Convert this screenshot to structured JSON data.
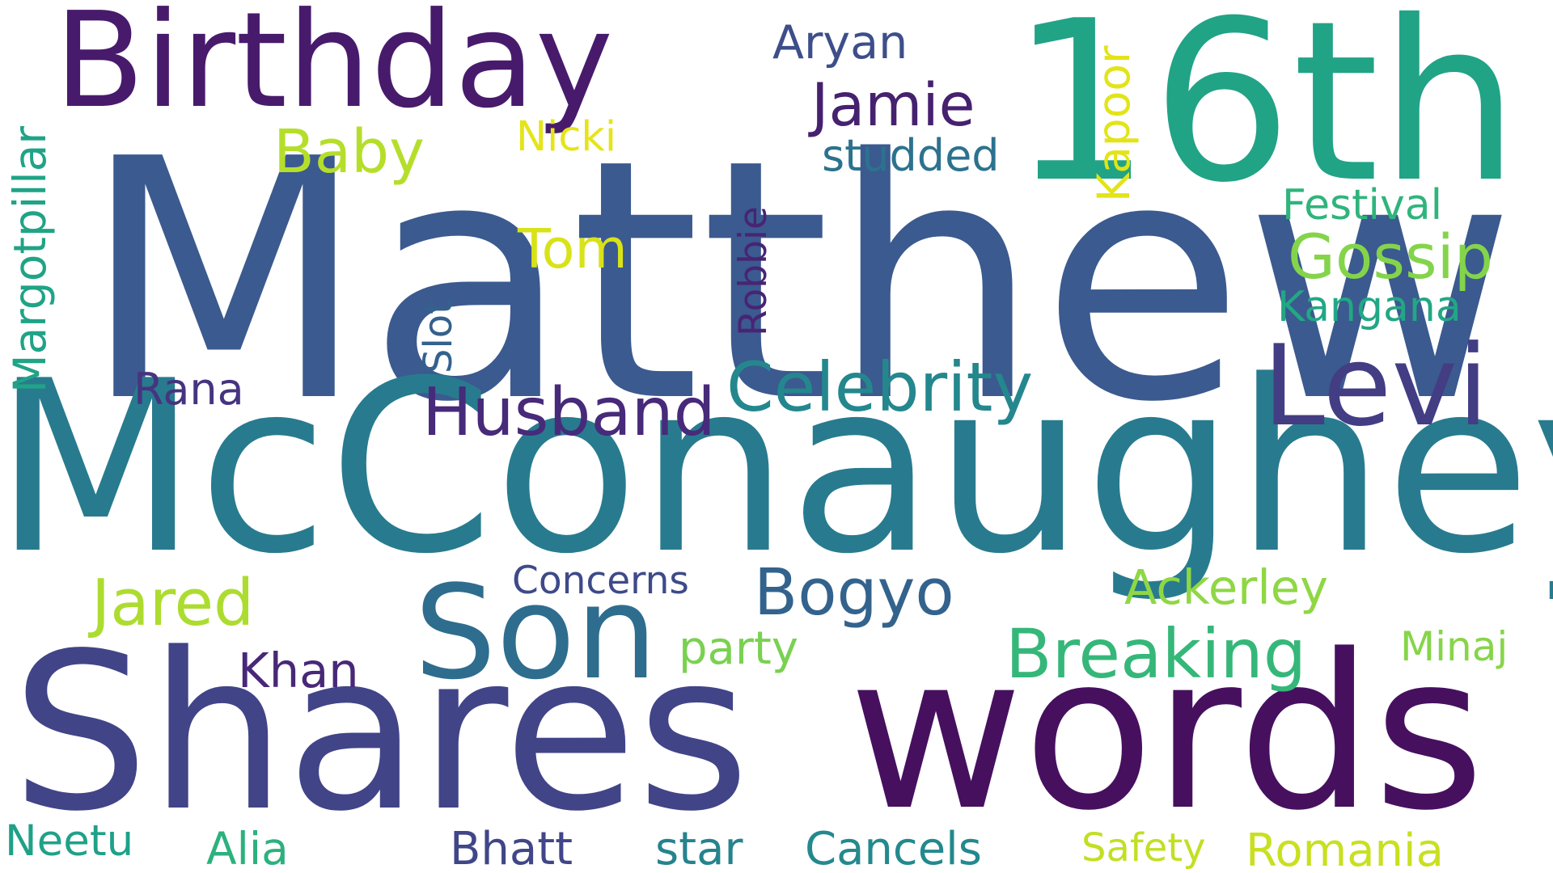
{
  "words": {
    "matthew": "Matthew",
    "mcconaughey": "McConaughey",
    "shares": "Shares",
    "words": "words",
    "sixteenth": "16th",
    "birthday": "Birthday",
    "son": "Son",
    "levi": "Levi",
    "husband": "Husband",
    "celebrity": "Celebrity",
    "breaking": "Breaking",
    "gossip": "Gossip",
    "bogyo": "Bogyo",
    "jared": "Jared",
    "jamie": "Jamie",
    "baby": "Baby",
    "tom": "Tom",
    "ackerley": "Ackerley",
    "studded": "studded",
    "aryan": "Aryan",
    "nicki": "Nicki",
    "festival": "Festival",
    "kangana": "Kangana",
    "concerns": "Concerns",
    "party": "party",
    "minaj": "Minaj",
    "khan": "Khan",
    "rana": "Rana",
    "neetu": "Neetu",
    "alia": "Alia",
    "bhatt": "Bhatt",
    "star": "star",
    "cancels": "Cancels",
    "safety": "Safety",
    "romania": "Romania",
    "margotpillar": "Margotpillar",
    "kapoor": "Kapoor",
    "robbie": "Robbie",
    "slot": "Slot"
  },
  "colors": {
    "matthew": "#3b5a8f",
    "mcconaughey": "#287b8e",
    "shares": "#414487",
    "words": "#46105f",
    "sixteenth": "#21a386",
    "birthday": "#481a6c",
    "son": "#2e6d8e",
    "levi": "#433d84",
    "husband": "#472a7a",
    "celebrity": "#24878e",
    "breaking": "#35b779",
    "gossip": "#84d44b",
    "bogyo": "#33638d",
    "jared": "#addc30",
    "jamie": "#46216f",
    "baby": "#b5de2b",
    "tom": "#d8e219",
    "ackerley": "#8fd744",
    "studded": "#2c728e",
    "aryan": "#3d4e8a",
    "nicki": "#e5e419",
    "festival": "#2fb47c",
    "kangana": "#22a785",
    "concerns": "#3e4a89",
    "party": "#7ad151",
    "minaj": "#86d549",
    "khan": "#482878",
    "rana": "#463480",
    "neetu": "#1fa188",
    "alia": "#2cb17e",
    "bhatt": "#404688",
    "star": "#25838e",
    "cancels": "#23898e",
    "safety": "#c2df23",
    "romania": "#c8e020",
    "margotpillar": "#20a386",
    "kapoor": "#e2e418",
    "robbie": "#482475",
    "slot": "#34618d"
  }
}
